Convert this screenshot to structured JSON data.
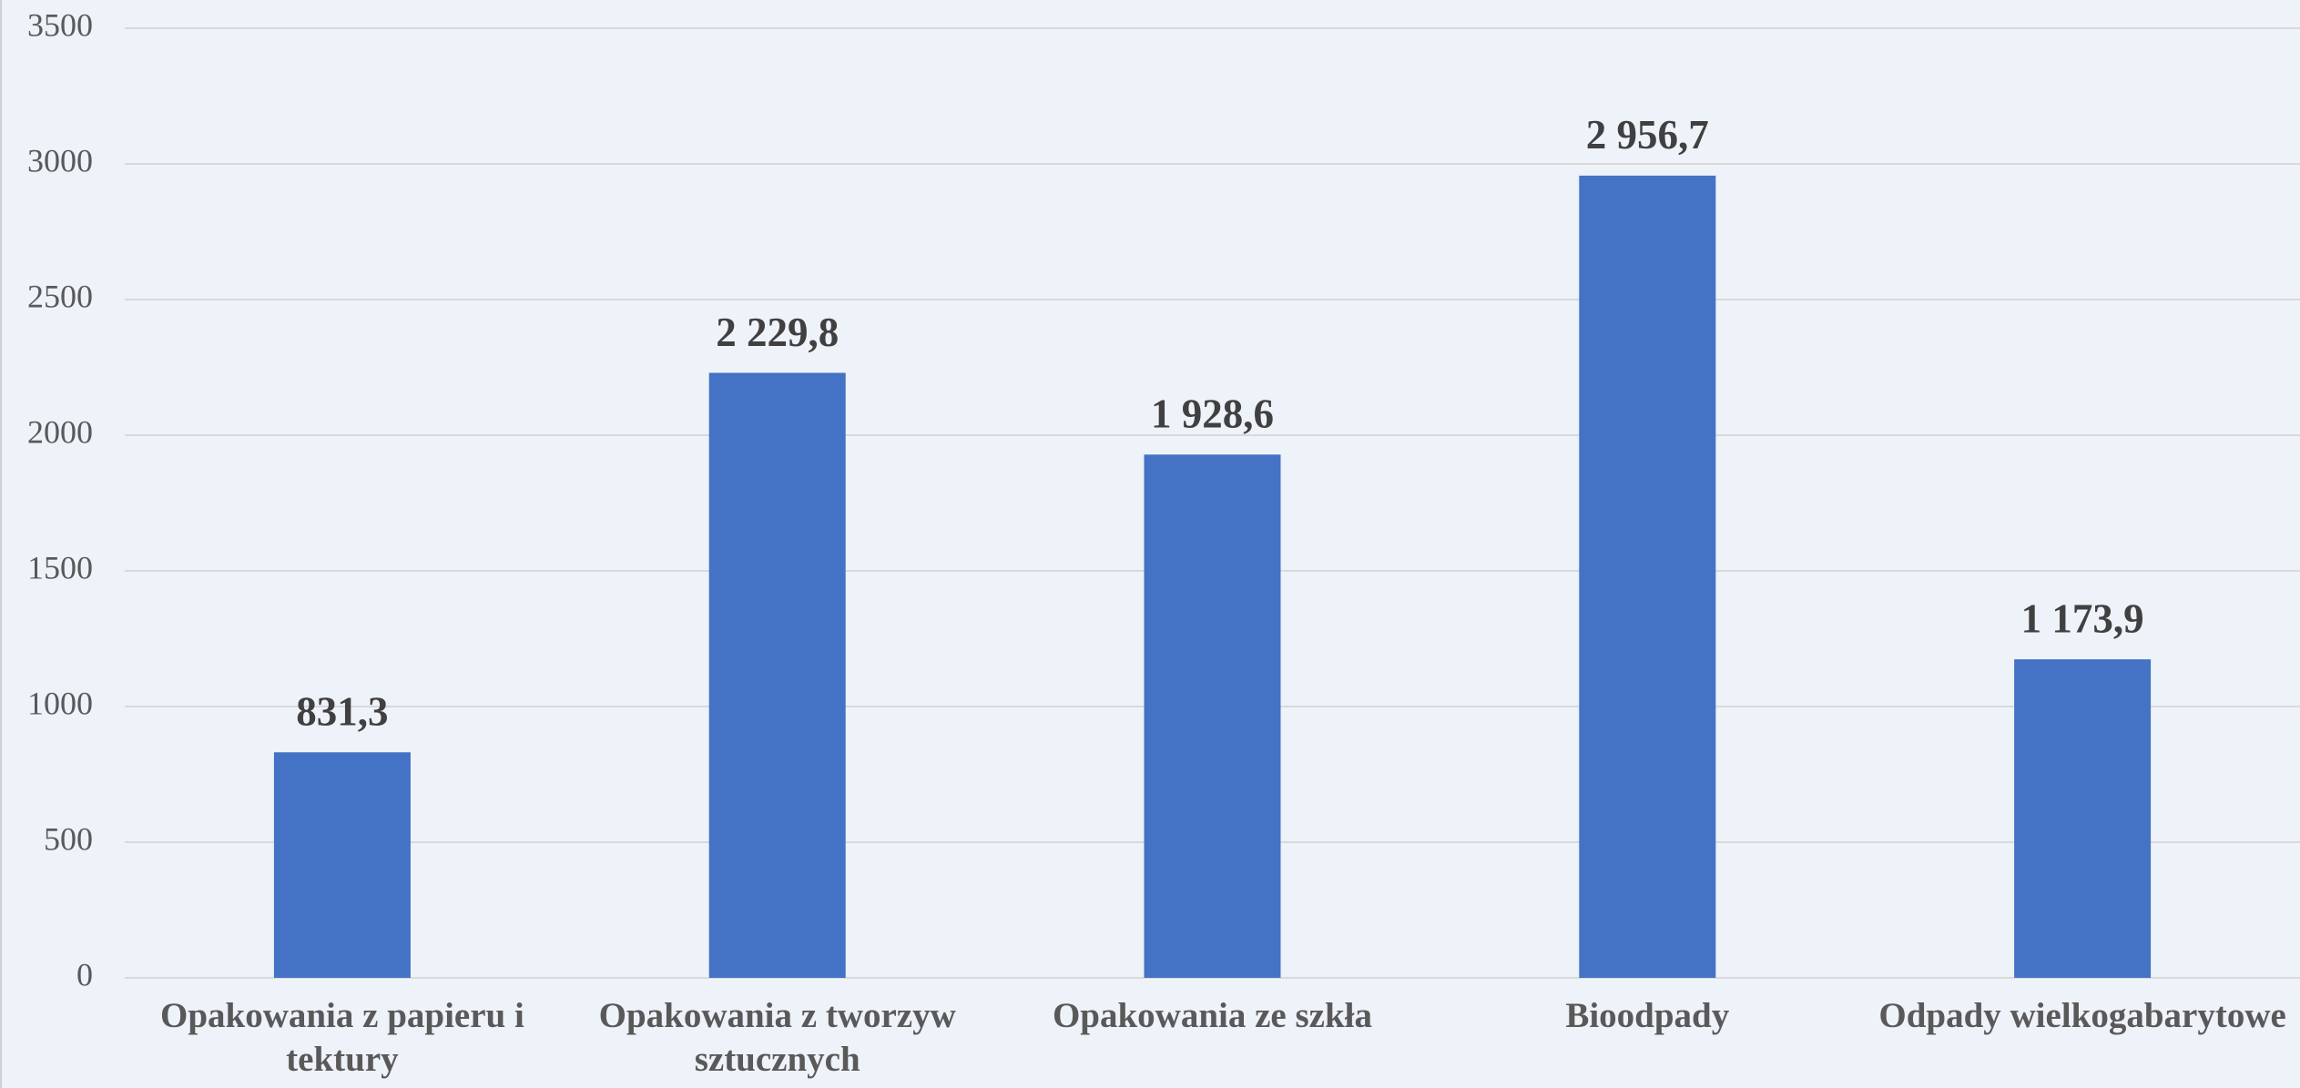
{
  "chart_data": {
    "type": "bar",
    "categories": [
      "Opakowania z papieru i tektury",
      "Opakowania z tworzyw sztucznych",
      "Opakowania ze szkła",
      "Bioodpady",
      "Odpady wielkogabarytowe"
    ],
    "values": [
      831.3,
      2229.8,
      1928.6,
      2956.7,
      1173.9
    ],
    "value_labels": [
      "831,3",
      "2 229,8",
      "1 928,6",
      "2 956,7",
      "1 173,9"
    ],
    "color": "#4472c4",
    "ylim": [
      0,
      3500
    ],
    "yticks": [
      0,
      500,
      1000,
      1500,
      2000,
      2500,
      3000,
      3500
    ],
    "grid": true
  }
}
